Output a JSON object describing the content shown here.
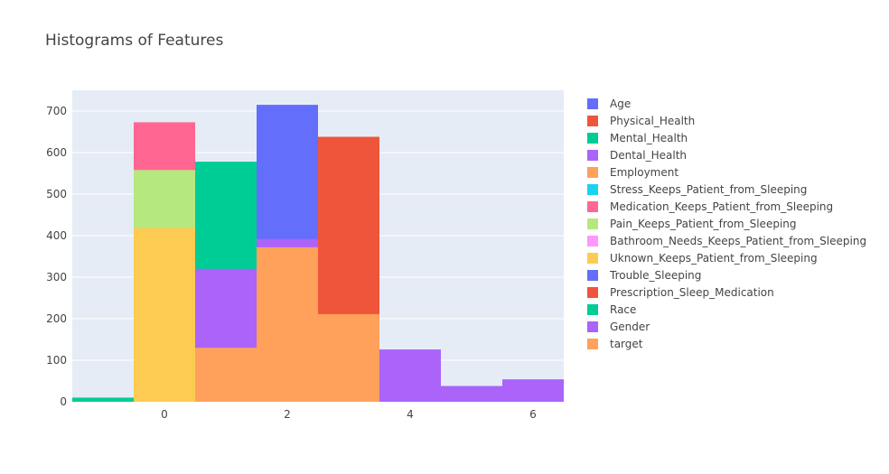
{
  "chart_data": {
    "type": "bar",
    "title": "Histograms of Features",
    "xlabel": "",
    "ylabel": "",
    "xlim": [
      -1.5,
      6.5
    ],
    "ylim": [
      0,
      750
    ],
    "x_ticks": [
      0,
      2,
      4,
      6
    ],
    "y_ticks": [
      0,
      100,
      200,
      300,
      400,
      500,
      600,
      700
    ],
    "grid": true,
    "legend_position": "right",
    "bin_edges": [
      -1.5,
      -0.5,
      0.5,
      1.5,
      2.5,
      3.5,
      4.5,
      5.5,
      6.5
    ],
    "bar_mode": "overlay",
    "series": [
      {
        "name": "Age",
        "color": "#636efa",
        "values": [
          0,
          0,
          0,
          0,
          0,
          0,
          0,
          0
        ]
      },
      {
        "name": "Physical_Health",
        "color": "#EF553B",
        "values": [
          5,
          0,
          0,
          0,
          0,
          0,
          0,
          0
        ]
      },
      {
        "name": "Mental_Health",
        "color": "#00cc96",
        "values": [
          10,
          0,
          0,
          0,
          0,
          0,
          0,
          0
        ]
      },
      {
        "name": "Dental_Health",
        "color": "#ab63fa",
        "values": [
          0,
          0,
          0,
          0,
          0,
          0,
          0,
          0
        ]
      },
      {
        "name": "Employment",
        "color": "#FFA15A",
        "values": [
          0,
          0,
          0,
          0,
          0,
          0,
          0,
          0
        ]
      },
      {
        "name": "Stress_Keeps_Patient_from_Sleeping",
        "color": "#19d3f3",
        "values": [
          0,
          0,
          0,
          0,
          0,
          0,
          0,
          0
        ]
      },
      {
        "name": "Medication_Keeps_Patient_from_Sleeping",
        "color": "#FF6692",
        "values": [
          0,
          673,
          0,
          0,
          0,
          0,
          0,
          0
        ]
      },
      {
        "name": "Pain_Keeps_Patient_from_Sleeping",
        "color": "#B6E880",
        "values": [
          0,
          558,
          0,
          0,
          0,
          0,
          0,
          0
        ]
      },
      {
        "name": "Bathroom_Needs_Keeps_Patient_from_Sleeping",
        "color": "#FF97FF",
        "values": [
          0,
          0,
          0,
          0,
          0,
          0,
          0,
          0
        ]
      },
      {
        "name": "Uknown_Keeps_Patient_from_Sleeping",
        "color": "#FECB52",
        "values": [
          0,
          418,
          0,
          0,
          0,
          0,
          0,
          0
        ]
      },
      {
        "name": "Trouble_Sleeping",
        "color": "#636efa",
        "values": [
          0,
          0,
          0,
          715,
          0,
          0,
          0,
          0
        ]
      },
      {
        "name": "Prescription_Sleep_Medication",
        "color": "#EF553B",
        "values": [
          0,
          0,
          0,
          0,
          638,
          0,
          0,
          0
        ]
      },
      {
        "name": "Race",
        "color": "#00cc96",
        "values": [
          0,
          0,
          578,
          0,
          0,
          43,
          20,
          0
        ]
      },
      {
        "name": "Gender",
        "color": "#ab63fa",
        "values": [
          0,
          0,
          320,
          392,
          0,
          126,
          38,
          54
        ]
      },
      {
        "name": "target",
        "color": "#FFA15A",
        "values": [
          0,
          0,
          130,
          372,
          211,
          0,
          0,
          0
        ]
      }
    ]
  }
}
